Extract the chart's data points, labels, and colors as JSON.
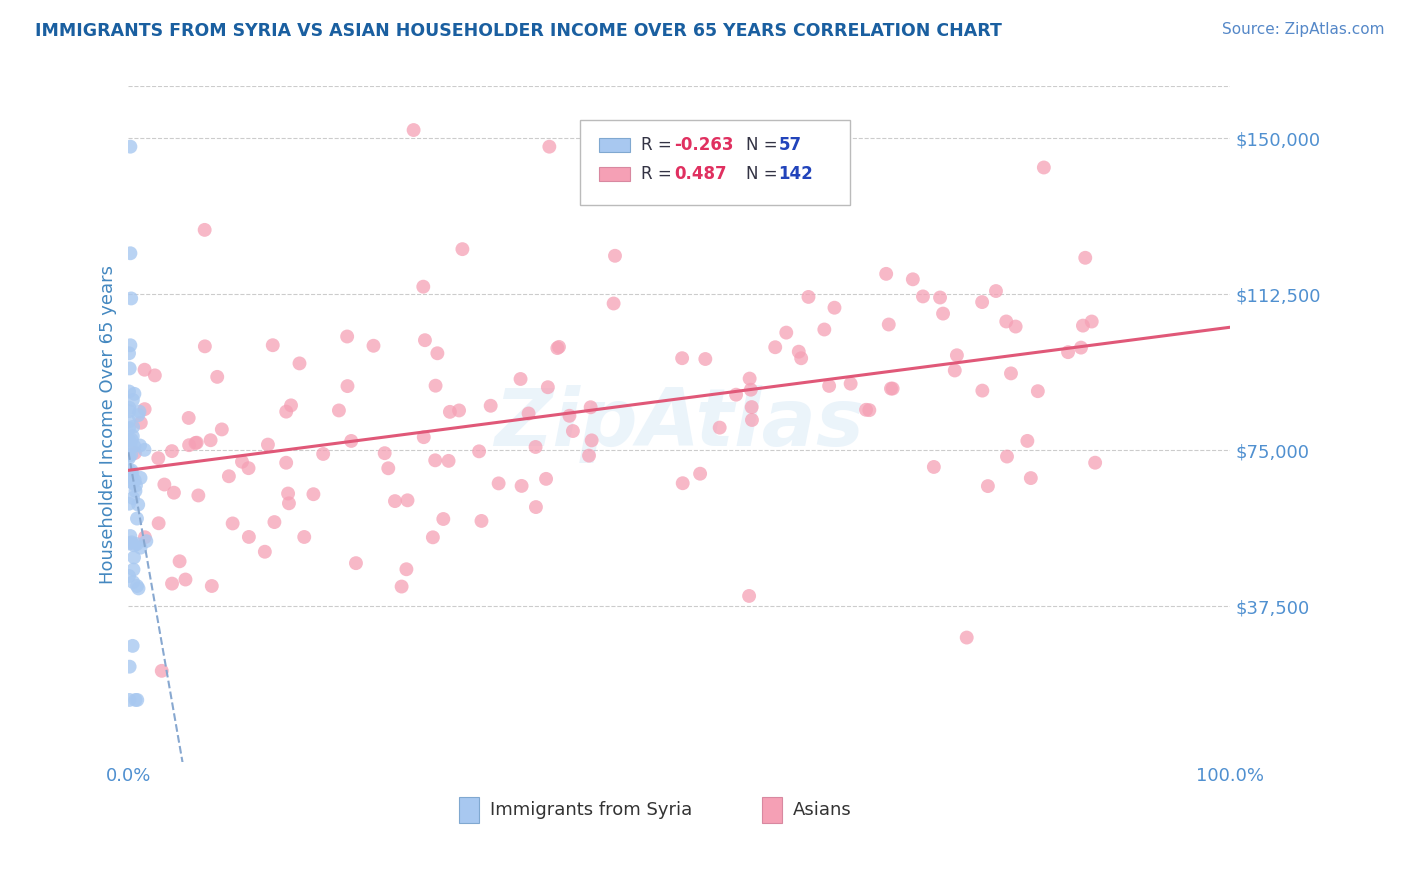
{
  "title": "IMMIGRANTS FROM SYRIA VS ASIAN HOUSEHOLDER INCOME OVER 65 YEARS CORRELATION CHART",
  "source": "Source: ZipAtlas.com",
  "ylabel": "Householder Income Over 65 years",
  "xlim": [
    0.0,
    100.0
  ],
  "ylim": [
    0,
    162500
  ],
  "yticks": [
    37500,
    75000,
    112500,
    150000
  ],
  "ytick_labels": [
    "$37,500",
    "$75,000",
    "$112,500",
    "$150,000"
  ],
  "xtick_labels": [
    "0.0%",
    "100.0%"
  ],
  "color_syria": "#a8c8f0",
  "color_asians": "#f5a0b5",
  "color_syria_line": "#88a8d0",
  "color_asians_line": "#e05878",
  "color_title": "#1a5fa0",
  "color_source": "#5588c8",
  "color_axis_labels": "#4488c0",
  "color_ytick_labels": "#5090d0",
  "color_legend_r_neg": "#e03060",
  "color_legend_r_pos": "#e03060",
  "color_legend_n": "#2244bb",
  "color_legend_label": "#333344",
  "watermark": "ZipAtlas",
  "background_color": "#ffffff",
  "grid_color": "#cccccc"
}
